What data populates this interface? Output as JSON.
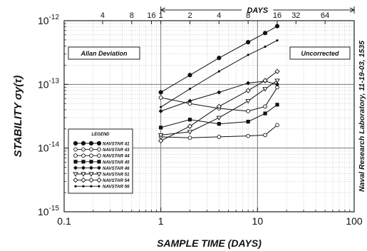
{
  "chart_data": {
    "type": "line",
    "xlabel": "SAMPLE TIME (DAYS)",
    "ylabel": "STABILITY σy(τ)",
    "x_scale": "log",
    "y_scale": "log",
    "xlim": [
      0.1,
      100
    ],
    "ylim": [
      1e-15,
      1e-12
    ],
    "x_tick_labels": [
      "0.1",
      "1",
      "10",
      "100"
    ],
    "y_tick_labels": [
      {
        "base": "10",
        "exp": "-12"
      },
      {
        "base": "10",
        "exp": "-13"
      },
      {
        "base": "10",
        "exp": "-14"
      },
      {
        "base": "10",
        "exp": "-15"
      }
    ],
    "top_axis": {
      "label": "DAYS",
      "range": [
        1,
        100
      ],
      "tick_values": [
        4,
        8,
        16,
        32,
        64
      ],
      "extra_tick_values": [
        1,
        2,
        4,
        8,
        16
      ],
      "tick_labels": [
        "4",
        "8",
        "16",
        "32",
        "64",
        "1",
        "2",
        "4",
        "8",
        "16"
      ]
    },
    "boxes": {
      "left": "Allan Deviation",
      "right": "Uncorrected"
    },
    "side_note": "Naval Research Laboratory, 11-19-03, 1535",
    "legend_title": "LEGEND",
    "grid": true,
    "series": [
      {
        "name": "NAVSTAR 41",
        "marker": "filled-circle",
        "x": [
          1,
          2,
          4,
          8,
          12,
          16
        ],
        "y": [
          7.5e-14,
          1.4e-13,
          2.6e-13,
          4.6e-13,
          6.4e-13,
          8.2e-13
        ]
      },
      {
        "name": "NAVSTAR 43",
        "marker": "open-circle",
        "x": [
          1,
          2,
          4,
          8,
          12,
          16
        ],
        "y": [
          6.2e-14,
          5e-14,
          4.2e-14,
          3.8e-14,
          4.5e-14,
          9e-14
        ]
      },
      {
        "name": "NAVSTAR 44",
        "marker": "open-circle",
        "x": [
          1,
          2,
          4,
          8,
          12,
          16
        ],
        "y": [
          1.5e-14,
          1.45e-14,
          1.5e-14,
          1.55e-14,
          1.6e-14,
          2.3e-14
        ]
      },
      {
        "name": "NAVSTAR 45",
        "marker": "filled-square",
        "x": [
          1,
          2,
          4,
          8,
          12,
          16
        ],
        "y": [
          2.1e-14,
          2.8e-14,
          2.4e-14,
          2.6e-14,
          3.5e-14,
          4.8e-14
        ]
      },
      {
        "name": "NAVSTAR 46",
        "marker": "filled-diamond",
        "x": [
          1,
          2,
          4,
          8,
          12,
          16
        ],
        "y": [
          3.8e-14,
          5.5e-14,
          7.5e-14,
          1.05e-13,
          1.12e-13,
          1e-13
        ]
      },
      {
        "name": "NAVSTAR 51",
        "marker": "open-triangle",
        "x": [
          1,
          2,
          4,
          8,
          12,
          16
        ],
        "y": [
          1.6e-14,
          1.8e-14,
          3e-14,
          5.5e-14,
          8.5e-14,
          1.15e-13
        ]
      },
      {
        "name": "NAVSTAR 54",
        "marker": "open-diamond",
        "x": [
          1,
          2,
          4,
          8,
          12,
          16
        ],
        "y": [
          1.3e-14,
          2.2e-14,
          4.5e-14,
          8e-14,
          1.15e-13,
          1.6e-13
        ]
      },
      {
        "name": "NAVSTAR 56",
        "marker": "filled-small",
        "x": [
          1,
          2,
          4,
          8,
          12,
          16
        ],
        "y": [
          4.4e-14,
          8.5e-14,
          1.6e-13,
          2.9e-13,
          3.9e-13,
          4.9e-13
        ]
      }
    ]
  }
}
